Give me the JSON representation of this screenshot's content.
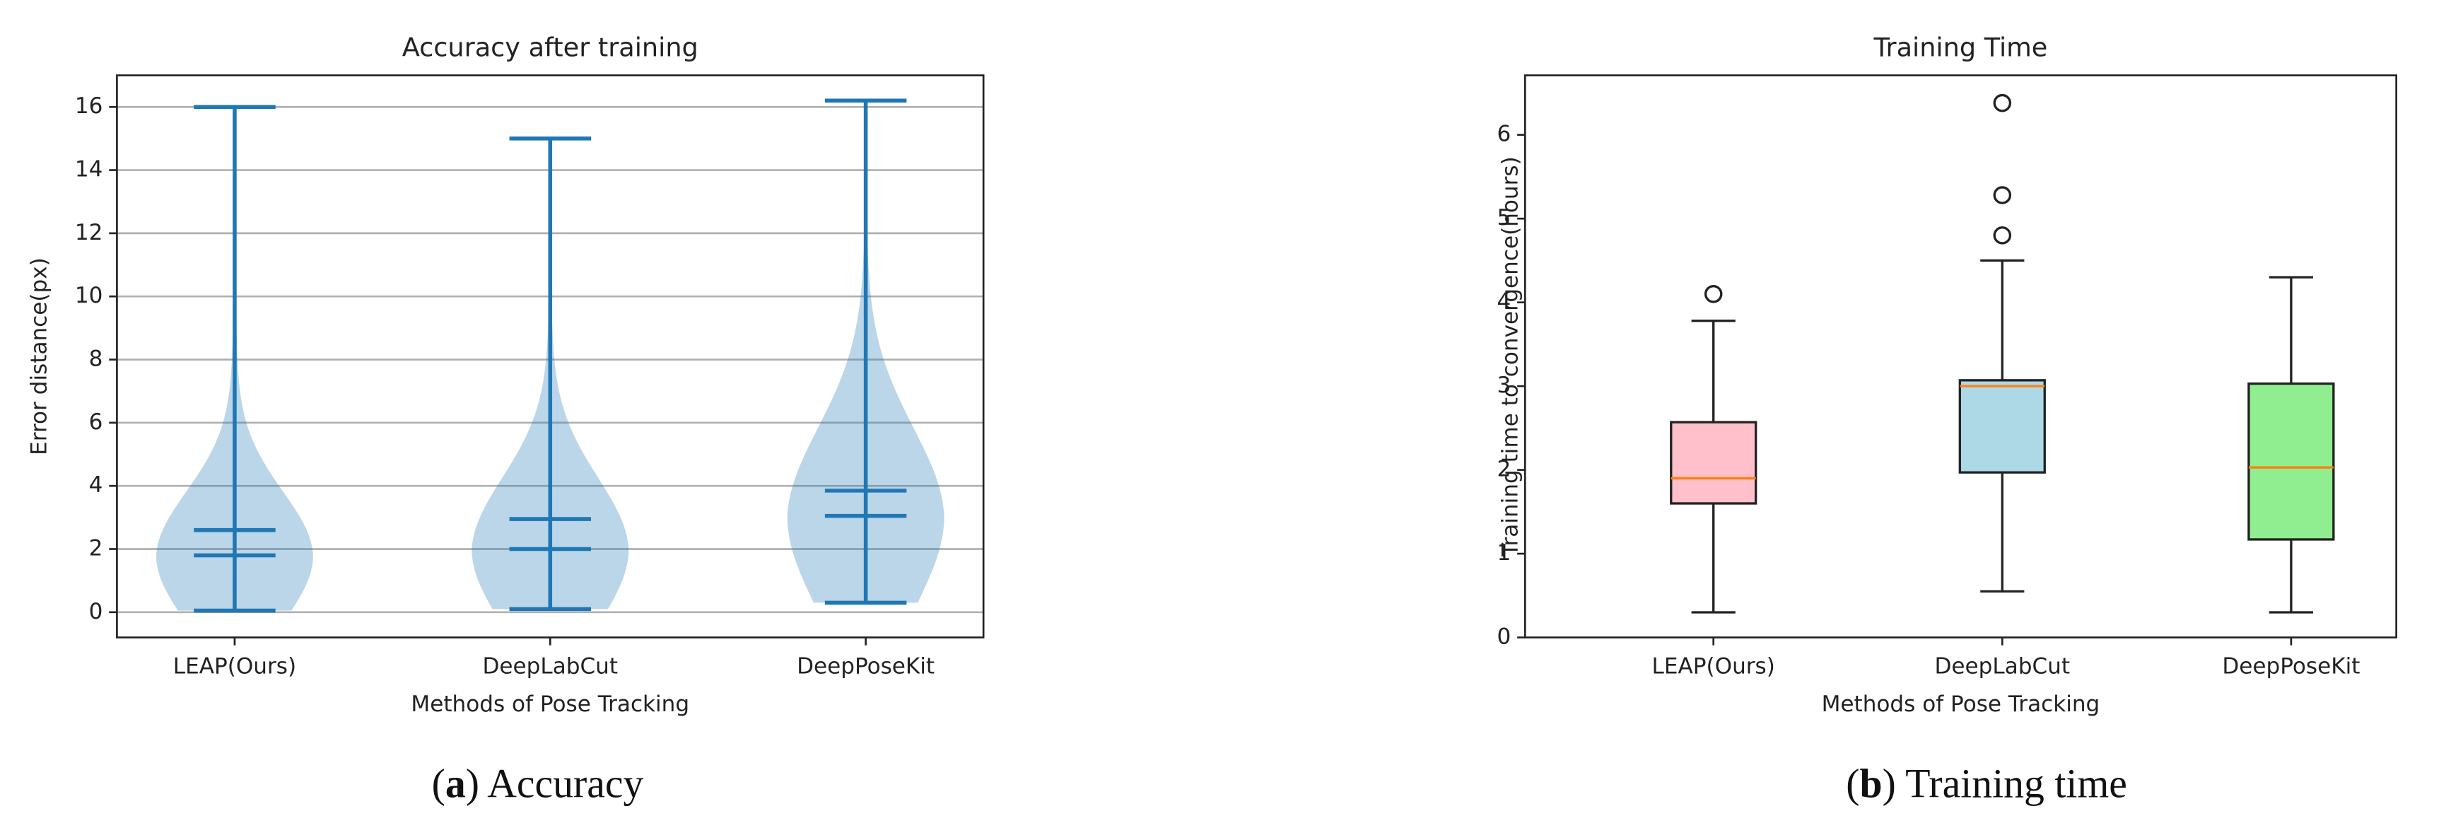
{
  "chart_data": [
    {
      "type": "violin",
      "title": "Accuracy after training",
      "xlabel": "Methods of Pose Tracking",
      "ylabel": "Error distance(px)",
      "categories": [
        "LEAP(Ours)",
        "DeepLabCut",
        "DeepPoseKit"
      ],
      "stats": [
        {
          "min": 0.05,
          "median": 1.8,
          "mean": 2.6,
          "max": 16
        },
        {
          "min": 0.1,
          "median": 2.0,
          "mean": 2.95,
          "max": 15
        },
        {
          "min": 0.3,
          "median": 3.05,
          "mean": 3.85,
          "max": 16.2
        }
      ],
      "color": "#1f77b4",
      "ylim": [
        -0.8,
        17.0
      ],
      "yticks": [
        0,
        2,
        4,
        6,
        8,
        10,
        12,
        14,
        16
      ],
      "grid": true,
      "caption": {
        "prefix": "(",
        "label": "a",
        "text": ") Accuracy"
      }
    },
    {
      "type": "box",
      "title": "Training Time",
      "xlabel": "Methods of Pose Tracking",
      "ylabel": "Training time to convergence(hours)",
      "categories": [
        "LEAP(Ours)",
        "DeepLabCut",
        "DeepPoseKit"
      ],
      "boxes": [
        {
          "whislo": 0.3,
          "q1": 1.6,
          "median": 1.9,
          "q3": 2.57,
          "whishi": 3.78,
          "fliers": [
            4.1
          ]
        },
        {
          "whislo": 0.55,
          "q1": 1.97,
          "median": 3.0,
          "q3": 3.07,
          "whishi": 4.5,
          "fliers": [
            4.8,
            5.28,
            6.38
          ]
        },
        {
          "whislo": 0.3,
          "q1": 1.17,
          "median": 2.03,
          "q3": 3.03,
          "whishi": 4.3,
          "fliers": []
        }
      ],
      "colors": [
        "#ffc0cb",
        "#add8e6",
        "#90ee90"
      ],
      "median_color": "#ff7f0e",
      "ylim": [
        0,
        6.71
      ],
      "yticks": [
        0,
        1,
        2,
        3,
        4,
        5,
        6
      ],
      "grid": false,
      "caption": {
        "prefix": "(",
        "label": "b",
        "text": ") Training time"
      }
    }
  ]
}
